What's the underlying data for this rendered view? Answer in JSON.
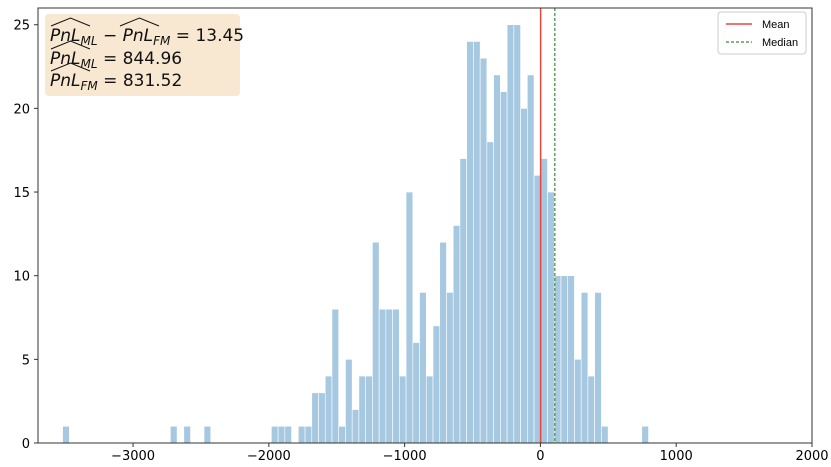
{
  "chart_data": {
    "type": "bar",
    "subtype": "histogram",
    "title": "",
    "xlabel": "",
    "ylabel": "",
    "xlim": [
      -3700,
      2000
    ],
    "ylim": [
      0,
      26
    ],
    "x_ticks": [
      -3000,
      -2000,
      -1000,
      0,
      1000,
      2000
    ],
    "x_tick_labels": [
      "−3000",
      "−2000",
      "−1000",
      "0",
      "1000",
      "2000"
    ],
    "y_ticks": [
      0,
      5,
      10,
      15,
      20,
      25
    ],
    "y_tick_labels": [
      "0",
      "5",
      "10",
      "15",
      "20",
      "25"
    ],
    "grid": false,
    "bar_color": "#a6c8e0",
    "bins": {
      "start": -3519,
      "width": 49.6,
      "counts": [
        1,
        0,
        0,
        0,
        0,
        0,
        0,
        0,
        0,
        0,
        0,
        0,
        0,
        0,
        0,
        0,
        1,
        0,
        1,
        0,
        0,
        1,
        0,
        0,
        0,
        0,
        0,
        0,
        0,
        0,
        0,
        1,
        1,
        1,
        0,
        1,
        1,
        3,
        3,
        4,
        8,
        1,
        5,
        2,
        4,
        4,
        12,
        8,
        8,
        8,
        4,
        15,
        6,
        9,
        4,
        7,
        12,
        9,
        13,
        17,
        24,
        24,
        23,
        18,
        22,
        21,
        25,
        25,
        20,
        22,
        16,
        17,
        15,
        10,
        10,
        10,
        5,
        9,
        4,
        9,
        1,
        0,
        0,
        0,
        0,
        0,
        1
      ]
    },
    "reference_lines": [
      {
        "name": "Mean",
        "x": 1.5,
        "color": "#e8473c",
        "style": "solid"
      },
      {
        "name": "Median",
        "x": 106,
        "color": "#3a8a3a",
        "style": "dashed"
      }
    ],
    "legend": {
      "position": "top-right",
      "entries": [
        "Mean",
        "Median"
      ]
    },
    "annotation": {
      "position": "top-left",
      "background": "#f8e8d2",
      "lines": [
        "PnL_ML − PnL_FM = 13.45",
        "PnL_ML = 844.96",
        "PnL_FM = 831.52"
      ],
      "line1_value": "13.45",
      "line2_value": "844.96",
      "line3_value": "831.52"
    }
  }
}
